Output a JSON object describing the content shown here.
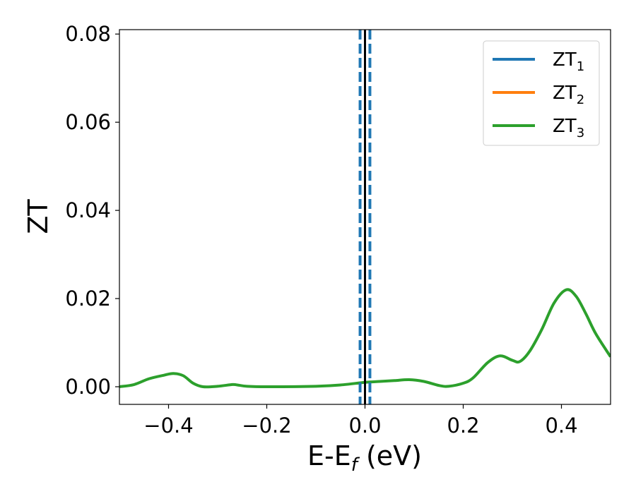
{
  "chart_data": {
    "type": "line",
    "title": "",
    "xlabel": {
      "main": "E-E",
      "sub": "f",
      "unit": " (eV)"
    },
    "ylabel": "ZT",
    "xlim": [
      -0.5,
      0.5
    ],
    "ylim": [
      -0.004,
      0.081
    ],
    "xticks": [
      -0.4,
      -0.2,
      0.0,
      0.2,
      0.4
    ],
    "xtick_labels": [
      "−0.4",
      "−0.2",
      "0.0",
      "0.2",
      "0.4"
    ],
    "yticks": [
      0.0,
      0.02,
      0.04,
      0.06,
      0.08
    ],
    "ytick_labels": [
      "0.00",
      "0.02",
      "0.04",
      "0.06",
      "0.08"
    ],
    "grid": false,
    "legend_position": "top-right",
    "series": [
      {
        "name": "ZT",
        "sub": "1",
        "color": "#1f77b4",
        "x": [],
        "y": []
      },
      {
        "name": "ZT",
        "sub": "2",
        "color": "#ff7f0e",
        "x": [],
        "y": []
      },
      {
        "name": "ZT",
        "sub": "3",
        "color": "#2ca02c",
        "x": [
          -0.5,
          -0.47,
          -0.44,
          -0.41,
          -0.39,
          -0.37,
          -0.35,
          -0.33,
          -0.3,
          -0.27,
          -0.26,
          -0.24,
          -0.2,
          -0.1,
          -0.05,
          0.0,
          0.03,
          0.06,
          0.09,
          0.12,
          0.15,
          0.17,
          0.2,
          0.22,
          0.25,
          0.275,
          0.3,
          0.315,
          0.335,
          0.36,
          0.385,
          0.41,
          0.43,
          0.45,
          0.47,
          0.5
        ],
        "y": [
          0.0,
          0.0005,
          0.0018,
          0.0026,
          0.003,
          0.0025,
          0.0008,
          0.0,
          0.0001,
          0.0005,
          0.0004,
          0.0001,
          0.0,
          0.0001,
          0.0004,
          0.001,
          0.0012,
          0.0014,
          0.0016,
          0.0012,
          0.0003,
          0.0001,
          0.0008,
          0.002,
          0.0055,
          0.007,
          0.006,
          0.0057,
          0.008,
          0.013,
          0.019,
          0.022,
          0.0205,
          0.0165,
          0.012,
          0.0068
        ]
      }
    ],
    "vertical_lines": [
      {
        "x": 0.0,
        "color": "#000000",
        "style": "solid"
      },
      {
        "x": -0.01,
        "color": "#1f77b4",
        "style": "dashed"
      },
      {
        "x": 0.01,
        "color": "#1f77b4",
        "style": "dashed"
      }
    ]
  }
}
